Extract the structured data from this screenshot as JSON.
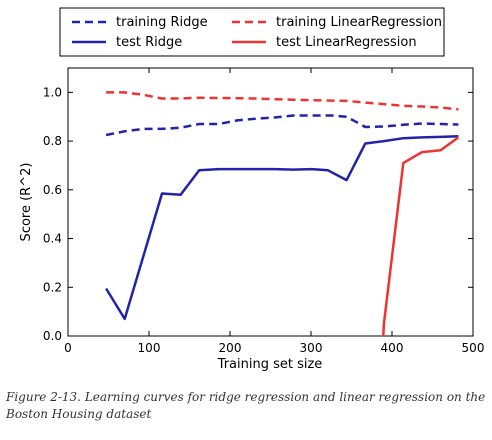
{
  "chart_data": {
    "type": "line",
    "xlabel": "Training set size",
    "ylabel": "Score (R^2)",
    "xlim": [
      0,
      500
    ],
    "ylim": [
      0.0,
      1.1
    ],
    "x_ticks": [
      0,
      100,
      200,
      300,
      400,
      500
    ],
    "y_ticks": [
      0.0,
      0.2,
      0.4,
      0.6,
      0.8,
      1.0
    ],
    "x_tick_labels": [
      "0",
      "100",
      "200",
      "300",
      "400",
      "500"
    ],
    "y_tick_labels": [
      "0.0",
      "0.2",
      "0.4",
      "0.6",
      "0.8",
      "1.0"
    ],
    "grid": false,
    "legend_position": "top, above plot, two columns",
    "series": [
      {
        "name": "training Ridge",
        "color": "#2222aa",
        "style": "dashed",
        "x": [
          47,
          70,
          93,
          116,
          139,
          162,
          186,
          209,
          232,
          255,
          278,
          301,
          325,
          344,
          367,
          390,
          414,
          437,
          460,
          482
        ],
        "y": [
          0.825,
          0.84,
          0.85,
          0.85,
          0.855,
          0.87,
          0.87,
          0.885,
          0.892,
          0.897,
          0.905,
          0.905,
          0.905,
          0.9,
          0.858,
          0.86,
          0.867,
          0.872,
          0.87,
          0.868
        ]
      },
      {
        "name": "test Ridge",
        "color": "#2222aa",
        "style": "solid",
        "x": [
          47,
          70,
          116,
          139,
          162,
          186,
          209,
          232,
          255,
          278,
          301,
          321,
          344,
          367,
          390,
          414,
          437,
          460,
          482
        ],
        "y": [
          0.195,
          0.07,
          0.585,
          0.58,
          0.68,
          0.685,
          0.685,
          0.685,
          0.685,
          0.683,
          0.685,
          0.68,
          0.64,
          0.79,
          0.8,
          0.812,
          0.815,
          0.817,
          0.82
        ]
      },
      {
        "name": "training LinearRegression",
        "color": "#ee3333",
        "style": "dashed",
        "x": [
          47,
          70,
          93,
          116,
          139,
          162,
          186,
          209,
          232,
          255,
          278,
          301,
          325,
          344,
          367,
          390,
          414,
          437,
          460,
          482
        ],
        "y": [
          1.0,
          1.0,
          0.99,
          0.975,
          0.975,
          0.978,
          0.977,
          0.976,
          0.975,
          0.972,
          0.97,
          0.968,
          0.966,
          0.965,
          0.958,
          0.952,
          0.945,
          0.942,
          0.938,
          0.93
        ]
      },
      {
        "name": "test LinearRegression",
        "color": "#ee3333",
        "style": "solid",
        "x": [
          383,
          390,
          414,
          437,
          460,
          482
        ],
        "y": [
          -0.4,
          0.05,
          0.71,
          0.755,
          0.762,
          0.815
        ]
      }
    ]
  },
  "caption": "Figure 2-13. Learning curves for ridge regression and linear regression on the Boston Housing dataset"
}
